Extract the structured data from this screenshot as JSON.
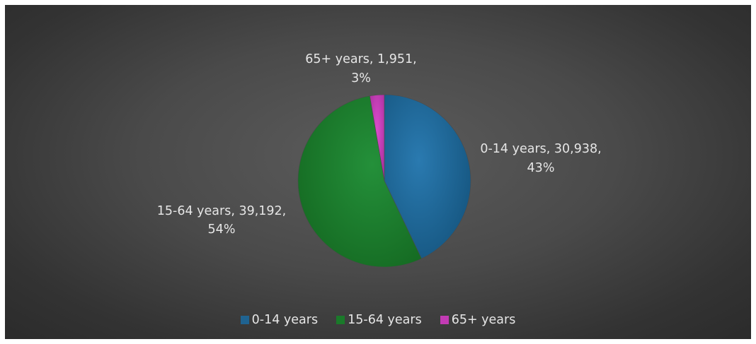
{
  "chart_data": {
    "type": "pie",
    "title": "",
    "categories": [
      "0-14 years",
      "15-64 years",
      "65+ years"
    ],
    "values": [
      30938,
      39192,
      1951
    ],
    "percent_labels": [
      "43%",
      "54%",
      "3%"
    ],
    "value_labels": [
      "30,938",
      "39,192",
      "1,951"
    ],
    "colors": [
      "#1f6391",
      "#1a7a2a",
      "#c23bb4"
    ],
    "data_labels": [
      {
        "line1": "0-14 years, 30,938,",
        "line2": "43%"
      },
      {
        "line1": "15-64 years, 39,192,",
        "line2": "54%"
      },
      {
        "line1": "65+ years, 1,951,",
        "line2": "3%"
      }
    ],
    "legend": {
      "position": "bottom",
      "entries": [
        "0-14 years",
        "15-64 years",
        "65+ years"
      ]
    }
  }
}
